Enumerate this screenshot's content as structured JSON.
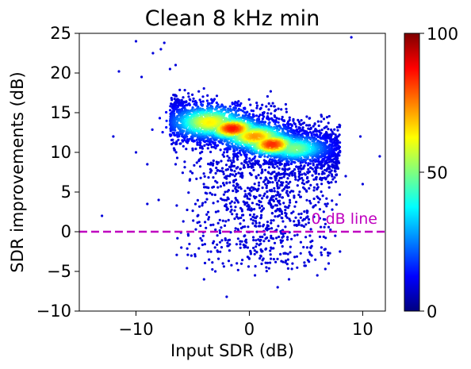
{
  "chart_data": {
    "type": "scatter",
    "title": "Clean 8 kHz min",
    "xlabel": "Input SDR (dB)",
    "ylabel": "SDR improvements (dB)",
    "xlim": [
      -15,
      12
    ],
    "ylim": [
      -10,
      25
    ],
    "xticks": [
      -10,
      0,
      10
    ],
    "xtick_labels": [
      "−10",
      "0",
      "10"
    ],
    "yticks": [
      -10,
      -5,
      0,
      5,
      10,
      15,
      20,
      25
    ],
    "ytick_labels": [
      "−10",
      "−5",
      "0",
      "5",
      "10",
      "15",
      "20",
      "25"
    ],
    "grid": false,
    "reference_line": {
      "y": 0,
      "style": "dashed",
      "color": "#bf00bf",
      "label": "0 dB line"
    },
    "colorbar": {
      "min": 0,
      "max": 100,
      "ticks": [
        0,
        50,
        100
      ],
      "tick_labels": [
        "0",
        "50",
        "100"
      ],
      "colormap": "jet"
    },
    "density_clusters": [
      {
        "cx": -3.5,
        "cy": 13.8,
        "sx": 1.8,
        "sy": 1.1,
        "density": 60
      },
      {
        "cx": -1.5,
        "cy": 13.0,
        "sx": 1.3,
        "sy": 0.8,
        "density": 85
      },
      {
        "cx": 0.5,
        "cy": 12.0,
        "sx": 1.6,
        "sy": 0.9,
        "density": 70
      },
      {
        "cx": 2.0,
        "cy": 11.0,
        "sx": 1.3,
        "sy": 0.8,
        "density": 82
      },
      {
        "cx": 4.0,
        "cy": 10.5,
        "sx": 1.6,
        "sy": 0.9,
        "density": 45
      }
    ],
    "sparse_points": [
      [
        -10,
        24
      ],
      [
        -7.5,
        23.8
      ],
      [
        -7.8,
        23
      ],
      [
        -8.5,
        22.5
      ],
      [
        -11.5,
        20.2
      ],
      [
        -9.5,
        19.5
      ],
      [
        -6.5,
        21
      ],
      [
        -7,
        20.5
      ],
      [
        9,
        24.5
      ],
      [
        -13,
        2
      ],
      [
        11.5,
        9.5
      ],
      [
        9.8,
        12
      ],
      [
        -10,
        10
      ],
      [
        -8,
        4
      ],
      [
        -9,
        3.5
      ],
      [
        -2,
        -8.2
      ],
      [
        2.5,
        -7
      ],
      [
        -5.5,
        -4.6
      ],
      [
        7,
        -4
      ],
      [
        8,
        -2.5
      ],
      [
        -6,
        -2
      ],
      [
        5.5,
        -3
      ],
      [
        10,
        6
      ],
      [
        -12,
        12
      ],
      [
        -9,
        8.5
      ],
      [
        8.5,
        7
      ],
      [
        6,
        -5.5
      ],
      [
        0.5,
        -5.5
      ],
      [
        -3,
        -5
      ],
      [
        3.5,
        -6
      ],
      [
        -4,
        -6
      ],
      [
        1.5,
        -4.5
      ]
    ],
    "lower_cloud": {
      "xmin": -6.5,
      "xmax": 8.5,
      "ymin": -5,
      "ymax": 9,
      "count": 850
    }
  }
}
